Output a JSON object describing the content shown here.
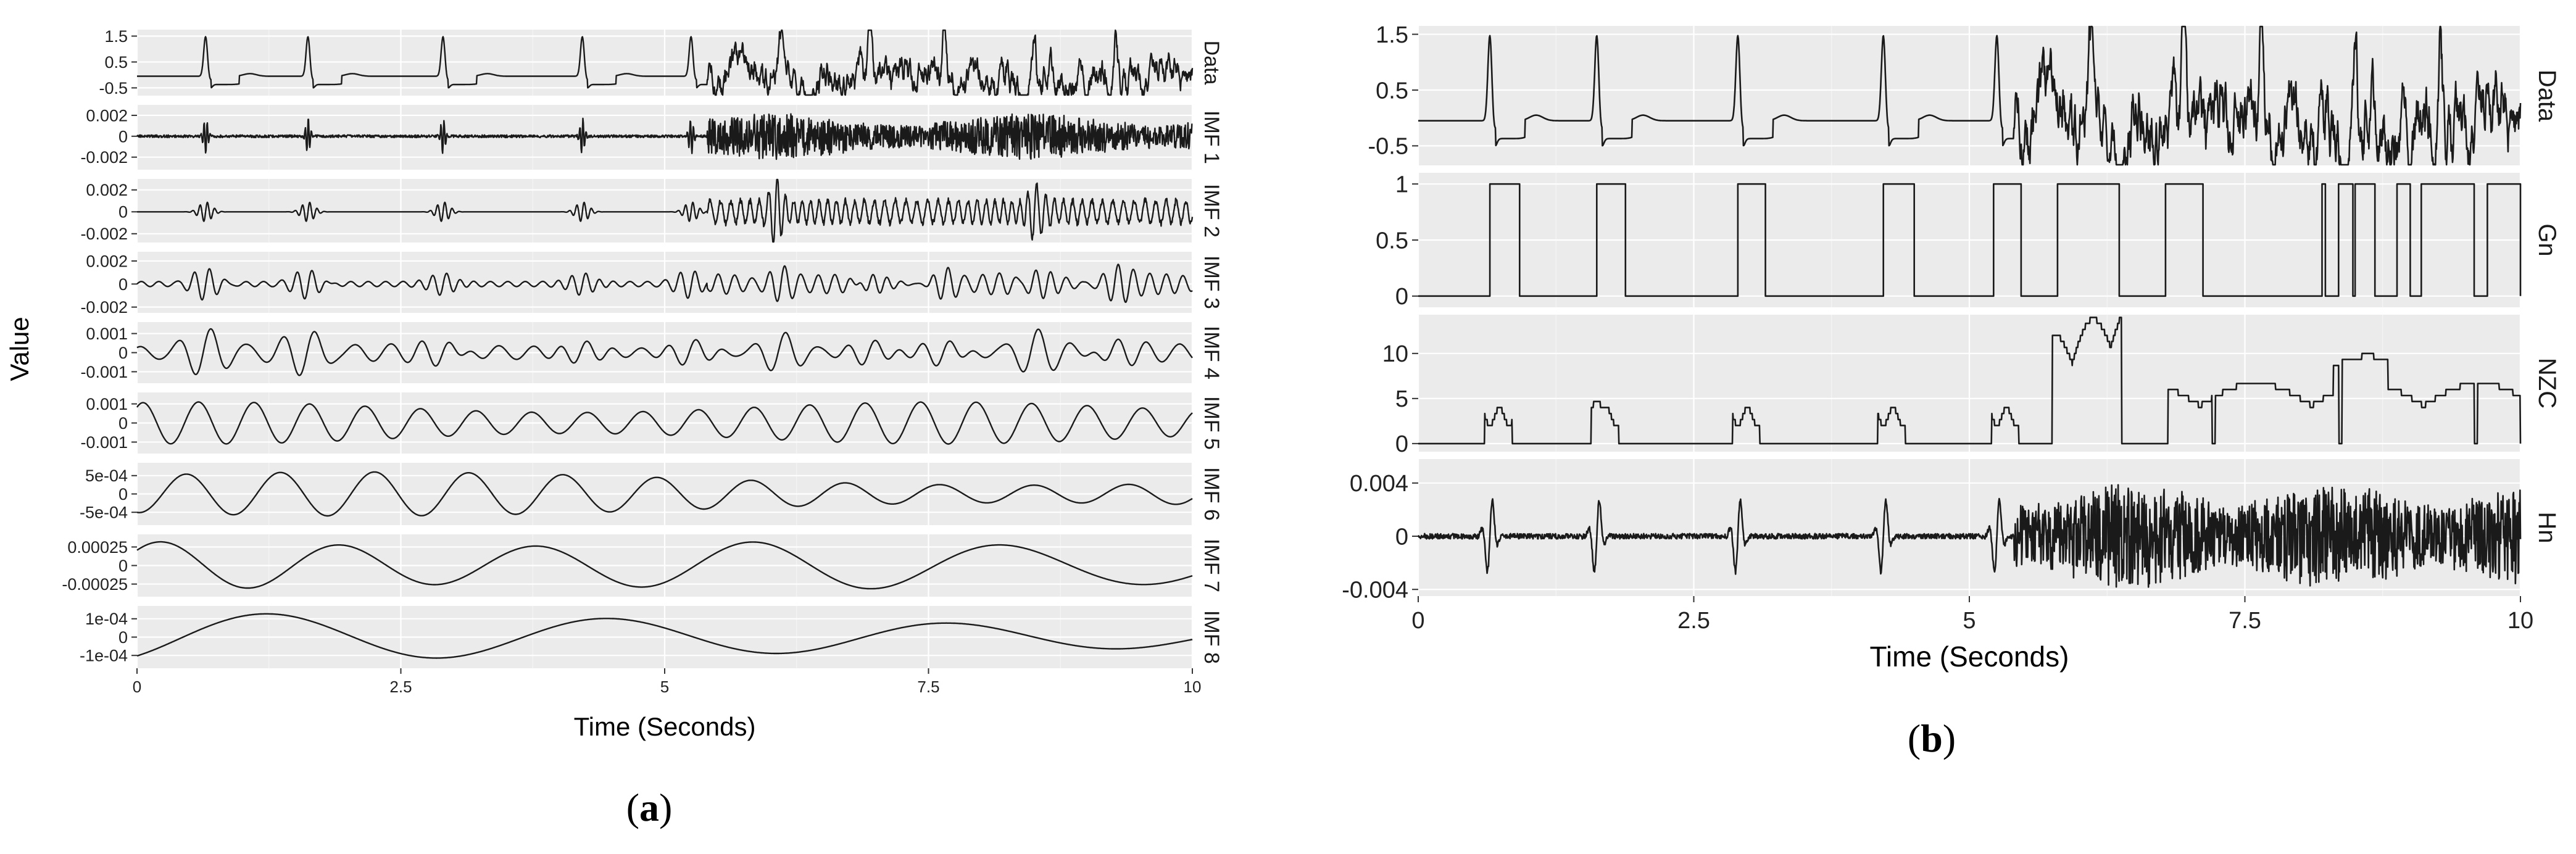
{
  "chart_data": [
    {
      "id": "a",
      "type": "line",
      "caption_letter": "a",
      "caption_open": "(",
      "caption_close": ")",
      "xlabel": "Time (Seconds)",
      "ylabel": "Value",
      "xlim": [
        0,
        10
      ],
      "x_ticks": [
        0,
        2.5,
        5,
        7.5,
        10
      ],
      "x_tick_labels": [
        "0",
        "2.5",
        "5",
        "7.5",
        "10"
      ],
      "facets": [
        {
          "name": "Data",
          "ylim": [
            -0.8,
            1.75
          ],
          "ticks": [
            1.5,
            0.5,
            -0.5
          ],
          "tick_labels": [
            "1.5",
            "0.5",
            "-0.5"
          ],
          "signal": "ecg"
        },
        {
          "name": "IMF 1",
          "ylim": [
            -0.0032,
            0.003
          ],
          "ticks": [
            0.002,
            0,
            -0.002
          ],
          "tick_labels": [
            "0.002",
            "0",
            "-0.002"
          ],
          "signal": "noise_fast"
        },
        {
          "name": "IMF 2",
          "ylim": [
            -0.0028,
            0.003
          ],
          "ticks": [
            0.002,
            0,
            -0.002
          ],
          "tick_labels": [
            "0.002",
            "0",
            "-0.002"
          ],
          "signal": "noise_mid"
        },
        {
          "name": "IMF 3",
          "ylim": [
            -0.0025,
            0.0028
          ],
          "ticks": [
            0.002,
            0,
            -0.002
          ],
          "tick_labels": [
            "0.002",
            "0",
            "-0.002"
          ],
          "signal": "osc_mid"
        },
        {
          "name": "IMF 4",
          "ylim": [
            -0.0016,
            0.0016
          ],
          "ticks": [
            0.001,
            0,
            -0.001
          ],
          "tick_labels": [
            "0.001",
            "0",
            "-0.001"
          ],
          "signal": "osc_slow"
        },
        {
          "name": "IMF 5",
          "ylim": [
            -0.0016,
            0.0016
          ],
          "ticks": [
            0.001,
            0,
            -0.001
          ],
          "tick_labels": [
            "0.001",
            "0",
            "-0.001"
          ],
          "signal": "sine_a"
        },
        {
          "name": "IMF 6",
          "ylim": [
            -0.00085,
            0.00085
          ],
          "ticks": [
            0.0005,
            0,
            -0.0005
          ],
          "tick_labels": [
            "5e-04",
            "0",
            "-5e-04"
          ],
          "signal": "sine_b"
        },
        {
          "name": "IMF 7",
          "ylim": [
            -0.00042,
            0.00042
          ],
          "ticks": [
            0.00025,
            0,
            -0.00025
          ],
          "tick_labels": [
            "0.00025",
            "0",
            "-0.00025"
          ],
          "signal": "sine_c"
        },
        {
          "name": "IMF 8",
          "ylim": [
            -0.00017,
            0.00017
          ],
          "ticks": [
            0.0001,
            0,
            -0.0001
          ],
          "tick_labels": [
            "1e-04",
            "0",
            "-1e-04"
          ],
          "signal": "trend"
        }
      ]
    },
    {
      "id": "b",
      "type": "line",
      "caption_letter": "b",
      "caption_open": "(",
      "caption_close": ")",
      "xlabel": "Time (Seconds)",
      "ylabel": "",
      "xlim": [
        0,
        10
      ],
      "x_ticks": [
        0,
        2.5,
        5,
        7.5,
        10
      ],
      "x_tick_labels": [
        "0",
        "2.5",
        "5",
        "7.5",
        "10"
      ],
      "facets": [
        {
          "name": "Data",
          "ylim": [
            -0.85,
            1.65
          ],
          "ticks": [
            1.5,
            0.5,
            -0.5
          ],
          "tick_labels": [
            "1.5",
            "0.5",
            "-0.5"
          ],
          "signal": "ecg"
        },
        {
          "name": "Gn",
          "ylim": [
            -0.1,
            1.1
          ],
          "ticks": [
            1,
            0.5,
            0
          ],
          "tick_labels": [
            "1",
            "0.5",
            "0"
          ],
          "signal": "gate",
          "gate_intervals": [
            [
              0.65,
              0.92
            ],
            [
              1.62,
              1.88
            ],
            [
              2.9,
              3.15
            ],
            [
              4.22,
              4.5
            ],
            [
              5.22,
              5.47
            ],
            [
              5.8,
              6.36
            ],
            [
              6.78,
              7.12
            ],
            [
              8.2,
              8.23
            ],
            [
              8.35,
              8.48
            ],
            [
              8.5,
              8.68
            ],
            [
              8.88,
              9.0
            ],
            [
              9.1,
              9.58
            ],
            [
              9.7,
              10.0
            ]
          ]
        },
        {
          "name": "NZC",
          "ylim": [
            -0.9,
            14.3
          ],
          "ticks": [
            10,
            5,
            0
          ],
          "tick_labels": [
            "10",
            "5",
            "0"
          ],
          "signal": "nzc"
        },
        {
          "name": "Hn",
          "ylim": [
            -0.0045,
            0.0058
          ],
          "ticks": [
            0.004,
            0,
            -0.004
          ],
          "tick_labels": [
            "0.004",
            "0",
            "-0.004"
          ],
          "signal": "noise_h"
        }
      ]
    }
  ]
}
